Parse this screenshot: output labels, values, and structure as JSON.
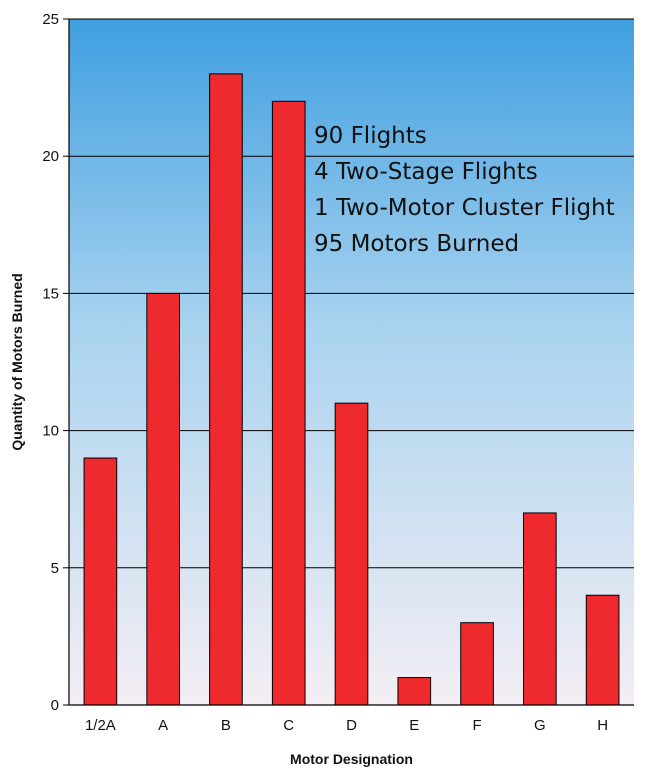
{
  "chart_data": {
    "type": "bar",
    "categories": [
      "1/2A",
      "A",
      "B",
      "C",
      "D",
      "E",
      "F",
      "G",
      "H"
    ],
    "values": [
      9,
      15,
      23,
      22,
      11,
      1,
      3,
      7,
      4
    ],
    "title": "",
    "xlabel": "Motor Designation",
    "ylabel": "Quantity of Motors Burned",
    "ylim": [
      0,
      25
    ],
    "yticks": [
      "0",
      "5",
      "10",
      "15",
      "20",
      "25"
    ],
    "grid": true,
    "legend": "none",
    "annotations": [
      "90 Flights",
      "4 Two-Stage Flights",
      "1 Two-Motor Cluster Flight",
      "95 Motors Burned"
    ],
    "colors": {
      "bar": "#ee2a2e",
      "bar_outline": "#000000",
      "background_top": "#3f9fe0",
      "background_bottom": "#f4eef4",
      "gridline": "#000000"
    }
  }
}
